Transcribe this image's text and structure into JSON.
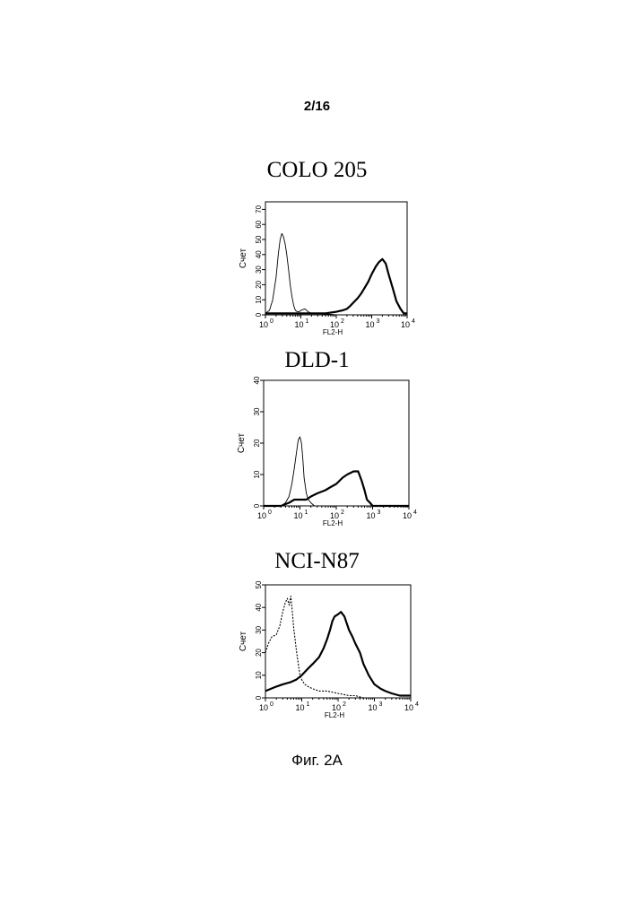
{
  "page": {
    "number": "2/16",
    "caption": "Фиг. 2A"
  },
  "chart_data": [
    {
      "type": "line",
      "title": "COLO 205",
      "xlabel": "FL2-H",
      "ylabel": "Счет",
      "x_scale": "log",
      "xlim": [
        1,
        10000
      ],
      "x_ticks": [
        "10^0",
        "10^1",
        "10^2",
        "10^3",
        "10^4"
      ],
      "ylim": [
        0,
        75
      ],
      "y_ticks": [
        0,
        10,
        20,
        30,
        40,
        50,
        60,
        70
      ],
      "series": [
        {
          "style": "thin",
          "x": [
            1,
            1.3,
            1.6,
            2,
            2.3,
            2.6,
            2.9,
            3.2,
            3.6,
            4,
            4.5,
            5,
            5.6,
            6.3,
            7,
            8,
            9,
            10,
            13,
            16,
            20,
            30,
            100,
            1000,
            10000
          ],
          "y": [
            1,
            3,
            10,
            25,
            40,
            50,
            54,
            52,
            47,
            40,
            30,
            20,
            12,
            6,
            3,
            2,
            2,
            3,
            4,
            2,
            1,
            1,
            0,
            0,
            0
          ]
        },
        {
          "style": "bold",
          "x": [
            1,
            10,
            50,
            100,
            150,
            200,
            250,
            300,
            400,
            500,
            600,
            800,
            1000,
            1300,
            1600,
            2000,
            2500,
            3000,
            4000,
            5000,
            6500,
            8000,
            10000
          ],
          "y": [
            1,
            1,
            1,
            2,
            3,
            4,
            6,
            8,
            11,
            14,
            17,
            22,
            27,
            32,
            35,
            37,
            34,
            27,
            17,
            9,
            4,
            1,
            1
          ]
        }
      ]
    },
    {
      "type": "line",
      "title": "DLD-1",
      "xlabel": "FL2-H",
      "ylabel": "Счет",
      "x_scale": "log",
      "xlim": [
        1,
        10000
      ],
      "x_ticks": [
        "10^0",
        "10^1",
        "10^2",
        "10^3",
        "10^4"
      ],
      "ylim": [
        0,
        40
      ],
      "y_ticks": [
        0,
        10,
        20,
        30,
        40
      ],
      "series": [
        {
          "style": "thin",
          "x": [
            1,
            3,
            4,
            5,
            6,
            7,
            8,
            9,
            10,
            11,
            12,
            13,
            15,
            17,
            20,
            25,
            100,
            10000
          ],
          "y": [
            0,
            0,
            1,
            3,
            7,
            12,
            17,
            21,
            22,
            20,
            15,
            9,
            4,
            2,
            1,
            0,
            0,
            0
          ]
        },
        {
          "style": "bold",
          "x": [
            1,
            3,
            5,
            7,
            10,
            15,
            20,
            30,
            50,
            70,
            100,
            150,
            200,
            300,
            400,
            500,
            600,
            700,
            850,
            1000,
            1500,
            10000
          ],
          "y": [
            0,
            0,
            1,
            2,
            2,
            2,
            3,
            4,
            5,
            6,
            7,
            9,
            10,
            11,
            11,
            8,
            5,
            2,
            1,
            0,
            0,
            0
          ]
        }
      ]
    },
    {
      "type": "line",
      "title": "NCI-N87",
      "xlabel": "FL2-H",
      "ylabel": "Счет",
      "x_scale": "log",
      "xlim": [
        1,
        10000
      ],
      "x_ticks": [
        "10^0",
        "10^1",
        "10^2",
        "10^3",
        "10^4"
      ],
      "ylim": [
        0,
        50
      ],
      "y_ticks": [
        0,
        10,
        20,
        30,
        40,
        50
      ],
      "series": [
        {
          "style": "dotted",
          "x": [
            1,
            1.2,
            1.5,
            2,
            2.5,
            3,
            3.5,
            4,
            4.5,
            5,
            5.5,
            6,
            7,
            8,
            9,
            10,
            12,
            15,
            20,
            30,
            50,
            100,
            200,
            300,
            500,
            1000,
            10000
          ],
          "y": [
            20,
            24,
            27,
            28,
            32,
            38,
            42,
            44,
            41,
            45,
            38,
            31,
            22,
            15,
            10,
            8,
            6,
            5,
            4,
            3,
            3,
            2,
            1,
            1,
            0,
            0,
            0
          ]
        },
        {
          "style": "bold",
          "x": [
            1,
            2,
            3,
            5,
            7,
            10,
            15,
            20,
            30,
            40,
            50,
            60,
            70,
            80,
            100,
            120,
            150,
            200,
            250,
            300,
            400,
            500,
            700,
            1000,
            1500,
            2000,
            3000,
            5000,
            10000
          ],
          "y": [
            3,
            5,
            6,
            7,
            8,
            10,
            13,
            15,
            18,
            22,
            26,
            30,
            34,
            36,
            37,
            38,
            36,
            30,
            27,
            24,
            20,
            15,
            10,
            6,
            4,
            3,
            2,
            1,
            1
          ]
        }
      ]
    }
  ]
}
